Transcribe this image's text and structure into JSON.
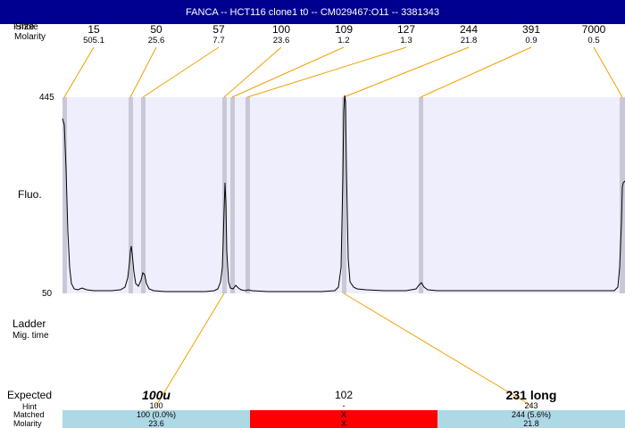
{
  "title": "FANCA -- HCT116 clone1 t0 -- CM029467:O11 -- 3381343",
  "header": {
    "size_label_overlap": "Size",
    "size_label_overlap2": "Fmole",
    "molarity_label": "Molarity"
  },
  "peaks": [
    {
      "size": "15",
      "molarity": "505.1"
    },
    {
      "size": "50",
      "molarity": "25.6"
    },
    {
      "size": "57",
      "molarity": "7.7"
    },
    {
      "size": "100",
      "molarity": "23.6"
    },
    {
      "size": "109",
      "molarity": "1.2"
    },
    {
      "size": "127",
      "molarity": "1.3"
    },
    {
      "size": "244",
      "molarity": "21.8"
    },
    {
      "size": "391",
      "molarity": "0.9"
    },
    {
      "size": "7000",
      "molarity": "0.5"
    }
  ],
  "axis": {
    "y_top": "445",
    "y_bottom": "50",
    "y_label": "Fluo."
  },
  "left_labels": {
    "ladder": "Ladder",
    "mig_time": "Mig. time",
    "expected": "Expected",
    "hint": "Hint",
    "matched": "Matched",
    "molarity": "Molarity"
  },
  "expected": [
    {
      "label": "100u",
      "hint": "100",
      "matched": "100 (0.0%)",
      "molarity": "23.6",
      "status": "ok"
    },
    {
      "label": "102",
      "hint": "-",
      "matched": "X",
      "molarity": "X",
      "status": "missing"
    },
    {
      "label": "231 long",
      "hint": "243",
      "matched": "244 (5.6%)",
      "molarity": "21.8",
      "status": "ok"
    }
  ],
  "colors": {
    "title_bg": "#000090",
    "plot_bg": "#eeeefc",
    "marker_band": "#c8c8d6",
    "connector": "#f0a000",
    "ok_cell": "#add8e6",
    "missing_cell": "#ff0000"
  },
  "chart_data": {
    "type": "line",
    "ylim": [
      50,
      445
    ],
    "peak_sizes": [
      15,
      50,
      57,
      100,
      109,
      127,
      244,
      391,
      7000
    ],
    "peak_molarity": [
      505.1,
      25.6,
      7.7,
      23.6,
      1.2,
      1.3,
      21.8,
      0.9,
      0.5
    ],
    "ylabel": "Fluo.",
    "grid": false
  }
}
